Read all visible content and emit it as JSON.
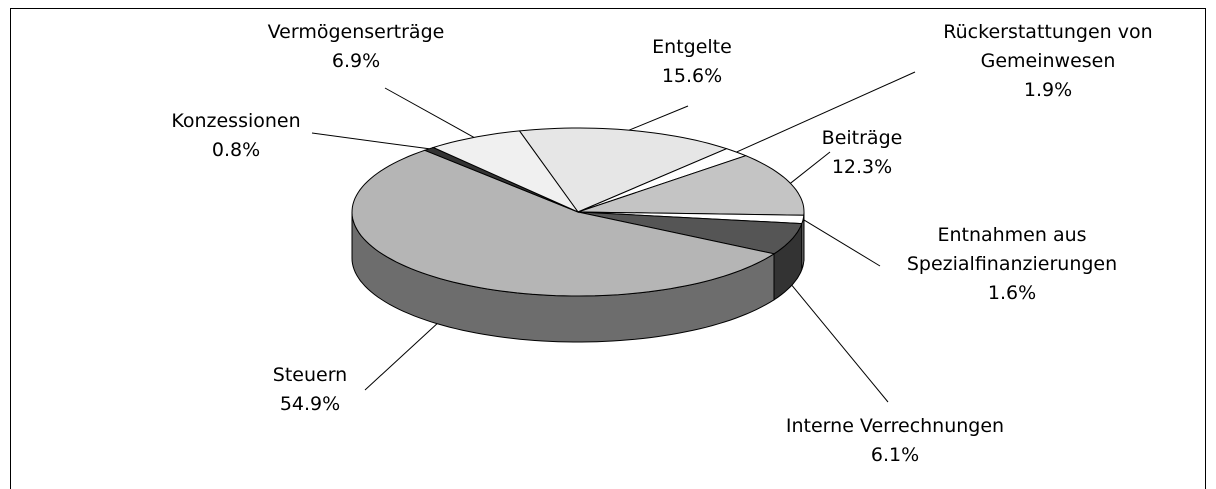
{
  "chart_data": {
    "type": "pie",
    "categories": [
      "Entgelte",
      "Rückerstattungen von Gemeinwesen",
      "Beiträge",
      "Entnahmen aus Spezialfinanzierungen",
      "Interne Verrechnungen",
      "Steuern",
      "Konzessionen",
      "Vermögenserträge"
    ],
    "values": [
      15.6,
      1.9,
      12.3,
      1.6,
      6.1,
      54.9,
      0.8,
      6.9
    ],
    "value_labels": [
      "15.6%",
      "1.9%",
      "12.3%",
      "1.6%",
      "6.1%",
      "54.9%",
      "0.8%",
      "6.9%"
    ],
    "colors": [
      "#e6e6e6",
      "#ffffff",
      "#c4c4c4",
      "#ffffff",
      "#555555",
      "#b5b5b5",
      "#333333",
      "#f0f0f0"
    ]
  }
}
